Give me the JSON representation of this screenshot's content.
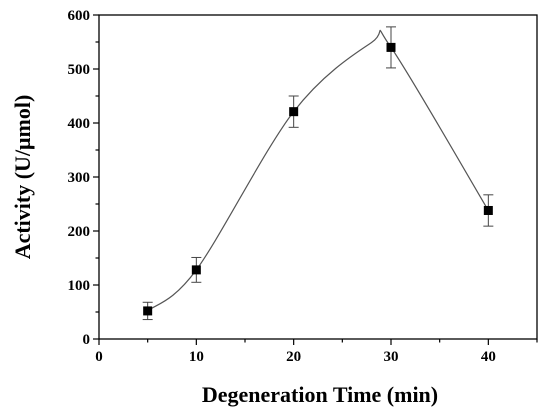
{
  "chart_data": {
    "type": "scatter",
    "xlabel": "Degeneration Time (min)",
    "ylabel": "Activity (U/μmol)",
    "xlim": [
      0,
      45
    ],
    "ylim": [
      0,
      600
    ],
    "xticks": [
      "0",
      "10",
      "20",
      "30",
      "40"
    ],
    "yticks": [
      "0",
      "100",
      "200",
      "300",
      "400",
      "500",
      "600"
    ],
    "grid": false,
    "legend": "none",
    "series": [
      {
        "x": [
          5,
          10,
          20,
          30,
          40
        ],
        "y": [
          52,
          128,
          421,
          540,
          238
        ],
        "error": [
          16,
          23,
          29,
          38,
          29
        ],
        "marker": "filled-square",
        "color": "#000000",
        "fit_line": "smooth curve through points, peak near x=28, y=549"
      }
    ]
  }
}
